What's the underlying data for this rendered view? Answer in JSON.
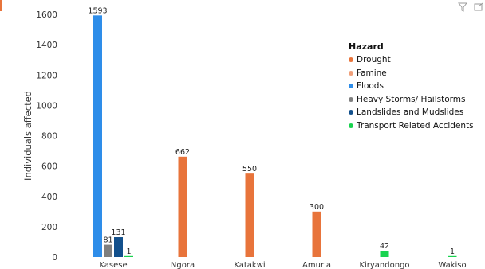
{
  "chart_data": {
    "type": "bar",
    "title": "",
    "xlabel": "",
    "ylabel": "Individuals affected",
    "ylim": [
      0,
      1600
    ],
    "yticks": [
      0,
      200,
      400,
      600,
      800,
      1000,
      1200,
      1400,
      1600
    ],
    "grid": false,
    "legend_position": "right",
    "categories": [
      "Kasese",
      "Ngora",
      "Katakwi",
      "Amuria",
      "Kiryandongo",
      "Wakiso"
    ],
    "legend_title": "Hazard",
    "series": [
      {
        "name": "Drought",
        "color": "#e8743b",
        "values": [
          null,
          662,
          550,
          300,
          null,
          null
        ]
      },
      {
        "name": "Famine",
        "color": "#f0a07a",
        "values": [
          null,
          null,
          null,
          null,
          null,
          null
        ]
      },
      {
        "name": "Floods",
        "color": "#2e8de9",
        "values": [
          1593,
          null,
          null,
          null,
          null,
          null
        ]
      },
      {
        "name": "Heavy Storms/ Hailstorms",
        "color": "#7f7f7f",
        "values": [
          81,
          null,
          null,
          null,
          null,
          null
        ]
      },
      {
        "name": "Landslides and Mudslides",
        "color": "#12508c",
        "values": [
          131,
          null,
          null,
          null,
          null,
          null
        ]
      },
      {
        "name": "Transport Related Accidents",
        "color": "#19d34f",
        "values": [
          1,
          null,
          null,
          null,
          42,
          1
        ]
      }
    ]
  },
  "toolbar": {
    "filter_icon": "filter-icon",
    "expand_icon": "expand-icon"
  }
}
